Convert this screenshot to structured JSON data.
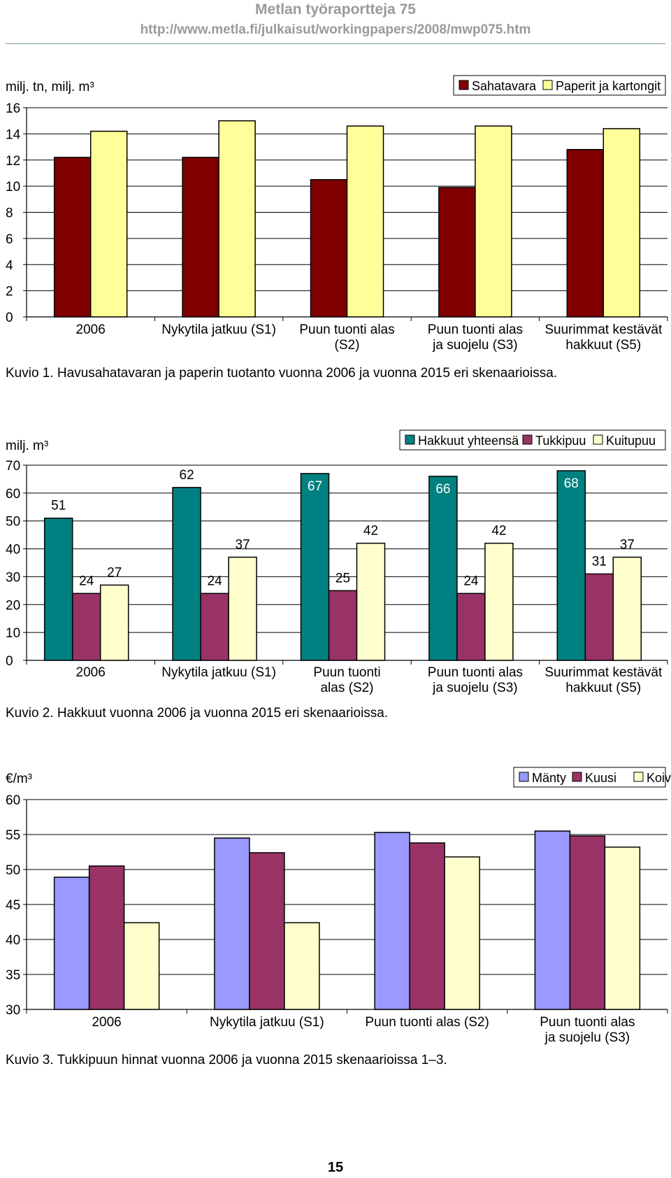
{
  "header": {
    "title": "Metlan työraportteja 75",
    "url": "http://www.metla.fi/julkaisut/workingpapers/2008/mwp075.htm"
  },
  "colors": {
    "sahatavara": "#800000",
    "paperit": "#ffff99",
    "hakkuut": "#008080",
    "tukkipuu": "#993366",
    "kuitupuu": "#ffffcc",
    "manty": "#9999ff",
    "kuusi": "#993366",
    "koivu": "#ffffcc"
  },
  "chart_data": [
    {
      "type": "bar",
      "ylabel": "milj. tn, milj. m³",
      "ylim": [
        0,
        16
      ],
      "yticks": [
        "0",
        "2",
        "4",
        "6",
        "8",
        "10",
        "12",
        "14",
        "16"
      ],
      "categories": [
        "2006",
        "Nykytila jatkuu (S1)",
        "Puun tuonti alas (S2)",
        "Puun tuonti alas ja suojelu (S3)",
        "Suurimmat kestävät hakkuut (S5)"
      ],
      "category_lines": [
        [
          "2006"
        ],
        [
          "Nykytila jatkuu (S1)"
        ],
        [
          "Puun tuonti alas",
          "(S2)"
        ],
        [
          "Puun tuonti alas",
          "ja suojelu (S3)"
        ],
        [
          "Suurimmat kestävät",
          "hakkuut (S5)"
        ]
      ],
      "series": [
        {
          "name": "Sahatavara",
          "values": [
            12.2,
            12.2,
            10.5,
            9.9,
            12.8
          ]
        },
        {
          "name": "Paperit ja kartongit",
          "values": [
            14.2,
            15.0,
            14.6,
            14.6,
            14.4
          ]
        }
      ],
      "legend": "top-right",
      "caption": "Kuvio 1. Havusahatavaran ja paperin tuotanto vuonna 2006 ja vuonna 2015 eri skenaarioissa."
    },
    {
      "type": "bar",
      "ylabel": "milj. m³",
      "ylim": [
        0,
        70
      ],
      "yticks": [
        "0",
        "10",
        "20",
        "30",
        "40",
        "50",
        "60",
        "70"
      ],
      "categories": [
        "2006",
        "Nykytila jatkuu (S1)",
        "Puun tuonti alas (S2)",
        "Puun tuonti alas ja suojelu (S3)",
        "Suurimmat kestävät hakkuut (S5)"
      ],
      "category_lines": [
        [
          "2006"
        ],
        [
          "Nykytila jatkuu (S1)"
        ],
        [
          "Puun tuonti",
          "alas (S2)"
        ],
        [
          "Puun tuonti alas",
          "ja suojelu (S3)"
        ],
        [
          "Suurimmat kestävät",
          "hakkuut (S5)"
        ]
      ],
      "series": [
        {
          "name": "Hakkuut yhteensä",
          "values": [
            51,
            62,
            67,
            66,
            68
          ],
          "labels": [
            "51",
            "62",
            "67",
            "66",
            "68"
          ]
        },
        {
          "name": "Tukkipuu",
          "values": [
            24,
            24,
            25,
            24,
            31
          ],
          "labels": [
            "24",
            "24",
            "25",
            "24",
            "31"
          ]
        },
        {
          "name": "Kuitupuu",
          "values": [
            27,
            37,
            42,
            42,
            37
          ],
          "labels": [
            "27",
            "37",
            "42",
            "42",
            "37"
          ]
        }
      ],
      "legend": "top-right",
      "caption": "Kuvio 2. Hakkuut vuonna 2006 ja vuonna 2015 eri skenaarioissa."
    },
    {
      "type": "bar",
      "ylabel": "€/m³",
      "ylim": [
        30,
        60
      ],
      "yticks": [
        "30",
        "35",
        "40",
        "45",
        "50",
        "55",
        "60"
      ],
      "categories": [
        "2006",
        "Nykytila jatkuu (S1)",
        "Puun tuonti alas (S2)",
        "Puun tuonti alas ja suojelu (S3)"
      ],
      "category_lines": [
        [
          "2006"
        ],
        [
          "Nykytila jatkuu (S1)"
        ],
        [
          "Puun tuonti alas (S2)"
        ],
        [
          "Puun tuonti alas",
          "ja suojelu (S3)"
        ]
      ],
      "series": [
        {
          "name": "Mänty",
          "values": [
            48.9,
            54.5,
            55.3,
            55.5
          ]
        },
        {
          "name": "Kuusi",
          "values": [
            50.5,
            52.4,
            53.8,
            54.8
          ]
        },
        {
          "name": "Koivu",
          "values": [
            42.4,
            42.4,
            51.8,
            53.2
          ]
        }
      ],
      "legend": "top-right",
      "caption": "Kuvio 3. Tukkipuun hinnat vuonna 2006 ja vuonna 2015 skenaarioissa 1–3."
    }
  ],
  "page_number": "15"
}
